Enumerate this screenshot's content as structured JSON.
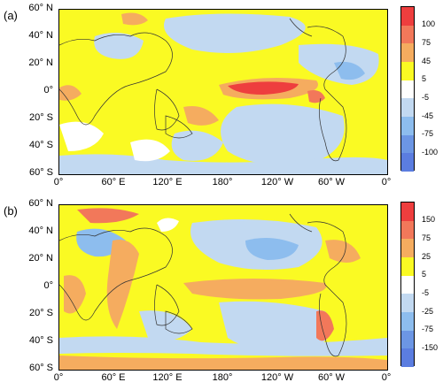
{
  "panels": [
    {
      "label": "(a)",
      "lat_labels": [
        "60° N",
        "40° N",
        "20° N",
        "0°",
        "20° S",
        "40° S",
        "60° S"
      ],
      "lon_labels": [
        "0°",
        "60° E",
        "120° E",
        "180°",
        "120° W",
        "60° W",
        "0°"
      ],
      "colorbar": {
        "labels": [
          "100",
          "75",
          "45",
          "5",
          "-5",
          "-45",
          "-75",
          "-100"
        ],
        "colors": [
          "#ee3e3e",
          "#f2785a",
          "#f5ac5f",
          "#fafa23",
          "#ffffff",
          "#c2d9f1",
          "#8dbdee",
          "#6c96e4",
          "#5b7de0"
        ]
      }
    },
    {
      "label": "(b)",
      "lat_labels": [
        "60° N",
        "40° N",
        "20° N",
        "0°",
        "20° S",
        "40° S",
        "60° S"
      ],
      "lon_labels": [
        "0°",
        "60° E",
        "120° E",
        "180°",
        "120° W",
        "60° W",
        "0°"
      ],
      "colorbar": {
        "labels": [
          "150",
          "75",
          "25",
          "5",
          "-5",
          "-25",
          "-75",
          "-150"
        ],
        "colors": [
          "#ee3e3e",
          "#f2785a",
          "#f5ac5f",
          "#fafa23",
          "#ffffff",
          "#c2d9f1",
          "#8dbdee",
          "#6c96e4",
          "#5b7de0"
        ]
      }
    }
  ]
}
